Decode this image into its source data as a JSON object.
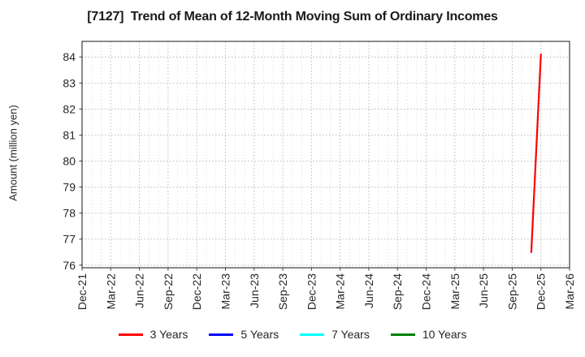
{
  "title": "[7127]  Trend of Mean of 12-Month Moving Sum of Ordinary Incomes",
  "ylabel": "Amount (million yen)",
  "chart_data": {
    "type": "line",
    "title": "[7127]  Trend of Mean of 12-Month Moving Sum of Ordinary Incomes",
    "xlabel": "",
    "ylabel": "Amount (million yen)",
    "x_tick_labels": [
      "Dec-21",
      "Mar-22",
      "Jun-22",
      "Sep-22",
      "Dec-22",
      "Mar-23",
      "Jun-23",
      "Sep-23",
      "Dec-23",
      "Mar-24",
      "Jun-24",
      "Sep-24",
      "Dec-24",
      "Mar-25",
      "Jun-25",
      "Sep-25",
      "Dec-25",
      "Mar-26"
    ],
    "months_per_major_tick": 3,
    "y_ticks": [
      76,
      77,
      78,
      79,
      80,
      81,
      82,
      83,
      84
    ],
    "ylim": [
      75.9,
      84.6
    ],
    "grid": {
      "major": true,
      "minor_vertical_monthly": true,
      "style": "dotted"
    },
    "legend_position": "bottom-center",
    "series": [
      {
        "name": "3 Years",
        "color": "#ff0000",
        "points": [
          {
            "x": "Nov-25",
            "y": 76.5
          },
          {
            "x": "Dec-25",
            "y": 84.1
          }
        ]
      },
      {
        "name": "5 Years",
        "color": "#0000ff",
        "points": []
      },
      {
        "name": "7 Years",
        "color": "#00ffff",
        "points": []
      },
      {
        "name": "10 Years",
        "color": "#008000",
        "points": []
      }
    ],
    "colors": {
      "axis_border": "#3d3d3d",
      "tick_text": "#262626",
      "grid_major": "#b5b5b5",
      "grid_minor": "#d2d2d2"
    }
  }
}
